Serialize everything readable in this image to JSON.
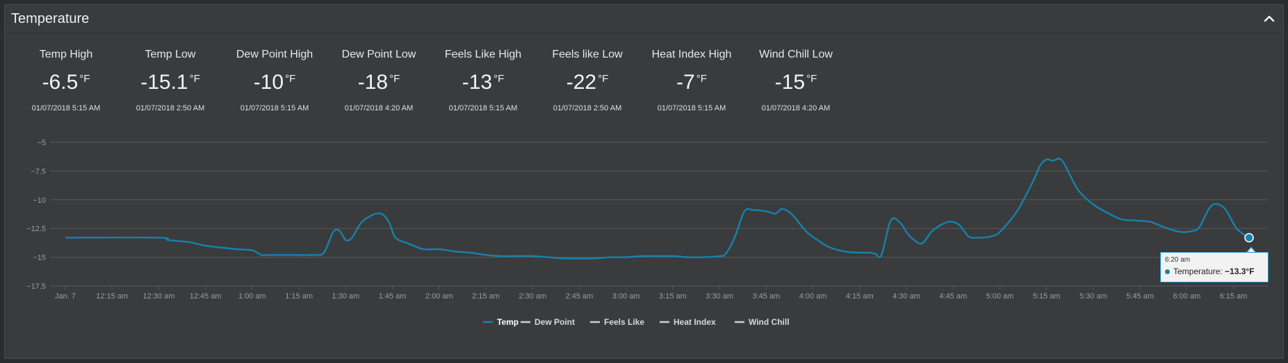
{
  "panel": {
    "title": "Temperature"
  },
  "stats": [
    {
      "label": "Temp High",
      "value": "-6.5",
      "unit": "°F",
      "time": "01/07/2018 5:15 AM"
    },
    {
      "label": "Temp Low",
      "value": "-15.1",
      "unit": "°F",
      "time": "01/07/2018 2:50 AM"
    },
    {
      "label": "Dew Point High",
      "value": "-10",
      "unit": "°F",
      "time": "01/07/2018 5:15 AM"
    },
    {
      "label": "Dew Point Low",
      "value": "-18",
      "unit": "°F",
      "time": "01/07/2018 4:20 AM"
    },
    {
      "label": "Feels Like High",
      "value": "-13",
      "unit": "°F",
      "time": "01/07/2018 5:15 AM"
    },
    {
      "label": "Feels like Low",
      "value": "-22",
      "unit": "°F",
      "time": "01/07/2018 2:50 AM"
    },
    {
      "label": "Heat Index High",
      "value": "-7",
      "unit": "°F",
      "time": "01/07/2018 5:15 AM"
    },
    {
      "label": "Wind Chill Low",
      "value": "-15",
      "unit": "°F",
      "time": "01/07/2018 4:20 AM"
    }
  ],
  "tooltip": {
    "time": "6:20 am",
    "label": "Temperature:",
    "value": "−13.3°F"
  },
  "colors": {
    "temp": "#1583ad",
    "inactive": "#d0d0d0",
    "grid": "#5a5b5d",
    "accent": "#1b8fc4"
  },
  "chart_data": {
    "type": "line",
    "x_unit": "minutes since midnight, Jan 7",
    "xlim": [
      0,
      380
    ],
    "ylim": [
      -17.5,
      -5
    ],
    "y_ticks": [
      {
        "value": -5,
        "label": "−5"
      },
      {
        "value": -7.5,
        "label": "−7.5"
      },
      {
        "value": -10,
        "label": "−10"
      },
      {
        "value": -12.5,
        "label": "−12.5"
      },
      {
        "value": -15,
        "label": "−15"
      },
      {
        "value": -17.5,
        "label": "−17.5"
      }
    ],
    "x_ticks": [
      {
        "value": 0,
        "label": "Jan. 7"
      },
      {
        "value": 15,
        "label": "12:15 am"
      },
      {
        "value": 30,
        "label": "12:30 am"
      },
      {
        "value": 45,
        "label": "12:45 am"
      },
      {
        "value": 60,
        "label": "1:00 am"
      },
      {
        "value": 75,
        "label": "1:15 am"
      },
      {
        "value": 90,
        "label": "1:30 am"
      },
      {
        "value": 105,
        "label": "1:45 am"
      },
      {
        "value": 120,
        "label": "2:00 am"
      },
      {
        "value": 135,
        "label": "2:15 am"
      },
      {
        "value": 150,
        "label": "2:30 am"
      },
      {
        "value": 165,
        "label": "2:45 am"
      },
      {
        "value": 180,
        "label": "3:00 am"
      },
      {
        "value": 195,
        "label": "3:15 am"
      },
      {
        "value": 210,
        "label": "3:30 am"
      },
      {
        "value": 225,
        "label": "3:45 am"
      },
      {
        "value": 240,
        "label": "4:00 am"
      },
      {
        "value": 255,
        "label": "4:15 am"
      },
      {
        "value": 270,
        "label": "4:30 am"
      },
      {
        "value": 285,
        "label": "4:45 am"
      },
      {
        "value": 300,
        "label": "5:00 am"
      },
      {
        "value": 315,
        "label": "5:15 am"
      },
      {
        "value": 330,
        "label": "5:30 am"
      },
      {
        "value": 345,
        "label": "5:45 am"
      },
      {
        "value": 360,
        "label": "6:00 am"
      },
      {
        "value": 375,
        "label": "6:15 am"
      }
    ],
    "legend": {
      "placement": "bottom-center",
      "entries": [
        {
          "name": "Temp",
          "active": true
        },
        {
          "name": "Dew Point",
          "active": false
        },
        {
          "name": "Feels Like",
          "active": false
        },
        {
          "name": "Heat Index",
          "active": false
        },
        {
          "name": "Wind Chill",
          "active": false
        }
      ]
    },
    "series": [
      {
        "name": "Temp",
        "x": [
          0,
          30,
          33,
          40,
          45,
          55,
          60,
          63,
          66,
          75,
          80,
          83,
          86,
          88,
          90,
          92,
          95,
          98,
          100,
          102,
          104,
          106,
          110,
          115,
          120,
          125,
          130,
          135,
          140,
          145,
          150,
          155,
          160,
          170,
          175,
          180,
          185,
          190,
          195,
          200,
          205,
          210,
          212,
          215,
          218,
          221,
          225,
          228,
          230,
          233,
          238,
          242,
          245,
          250,
          255,
          258,
          260,
          262,
          265,
          268,
          270,
          272,
          275,
          278,
          281,
          284,
          287,
          290,
          293,
          297,
          300,
          305,
          308,
          311,
          313,
          315,
          317,
          320,
          325,
          330,
          335,
          339,
          343,
          348,
          351,
          355,
          358,
          360,
          362,
          364,
          368,
          372,
          376,
          380
        ],
        "y": [
          -13.3,
          -13.3,
          -13.5,
          -13.7,
          -14.0,
          -14.3,
          -14.4,
          -14.8,
          -14.8,
          -14.8,
          -14.8,
          -14.6,
          -12.8,
          -12.7,
          -13.5,
          -13.3,
          -12.0,
          -11.4,
          -11.2,
          -11.3,
          -12.0,
          -13.3,
          -13.8,
          -14.3,
          -14.3,
          -14.5,
          -14.6,
          -14.8,
          -14.9,
          -14.9,
          -14.9,
          -15.0,
          -15.1,
          -15.1,
          -15.0,
          -15.0,
          -14.9,
          -14.9,
          -14.9,
          -15.0,
          -15.0,
          -14.9,
          -14.7,
          -13.2,
          -11.0,
          -10.9,
          -11.0,
          -11.2,
          -10.8,
          -11.2,
          -12.8,
          -13.6,
          -14.1,
          -14.5,
          -14.6,
          -14.6,
          -14.7,
          -14.8,
          -11.8,
          -12.0,
          -12.8,
          -13.4,
          -13.8,
          -12.8,
          -12.2,
          -11.9,
          -12.2,
          -13.2,
          -13.3,
          -13.2,
          -12.8,
          -11.2,
          -9.8,
          -8.2,
          -7.0,
          -6.5,
          -6.6,
          -6.6,
          -9.1,
          -10.4,
          -11.2,
          -11.7,
          -11.8,
          -11.9,
          -12.2,
          -12.6,
          -12.8,
          -12.8,
          -12.7,
          -12.4,
          -10.5,
          -10.7,
          -12.5,
          -13.3
        ]
      }
    ]
  }
}
